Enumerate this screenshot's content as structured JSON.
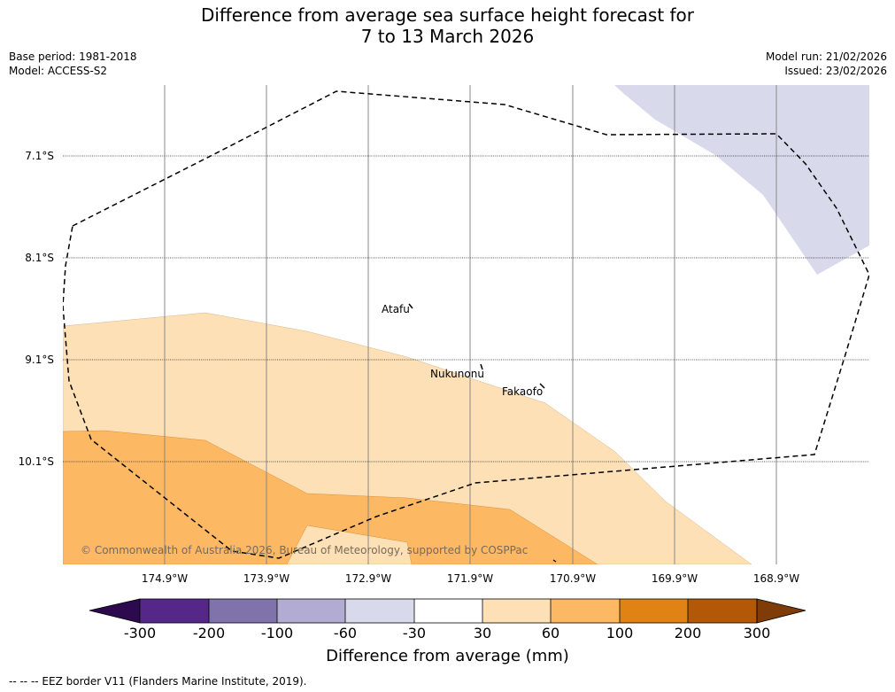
{
  "title_line1": "Difference from average sea surface height forecast for",
  "title_line2": "7 to 13 March 2026",
  "base_period": "Base period: 1981-2018",
  "model": "Model: ACCESS-S2",
  "model_run": "Model run: 21/02/2026",
  "issued": "Issued: 23/02/2026",
  "latitudes": [
    "7.1°S",
    "8.1°S",
    "9.1°S",
    "10.1°S"
  ],
  "longitudes": [
    "174.9°W",
    "173.9°W",
    "172.9°W",
    "171.9°W",
    "170.9°W",
    "169.9°W",
    "168.9°W"
  ],
  "places": [
    "Atafu",
    "Nukunonu",
    "Fakaofo"
  ],
  "copyright": "© Commonwealth of Australia 2026, Bureau of Meteorology, supported by COSPPac",
  "colorbar": {
    "ticks": [
      "-300",
      "-200",
      "-100",
      "-60",
      "-30",
      "30",
      "60",
      "100",
      "200",
      "300"
    ],
    "colors": [
      "#2d0a4e",
      "#542788",
      "#8073ac",
      "#b2abd2",
      "#d8daeb",
      "#ffffff",
      "#fee0b6",
      "#fdb863",
      "#e08214",
      "#b35806",
      "#7f3b08"
    ],
    "label": "Difference from average (mm)"
  },
  "legend_note": "--  --  -- EEZ border V11 (Flanders Marine Institute, 2019)."
}
